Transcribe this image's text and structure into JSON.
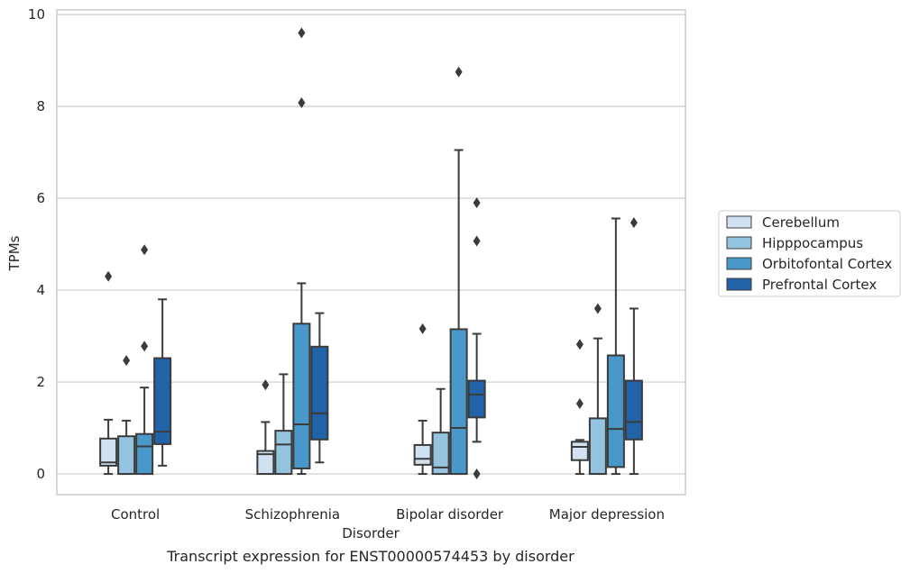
{
  "chart_data": {
    "type": "boxplot",
    "caption": "Transcript expression for ENST00000574453 by disorder",
    "xlabel": "Disorder",
    "ylabel": "TPMs",
    "ylim": [
      -0.45,
      10.1
    ],
    "yticks": [
      0,
      2,
      4,
      6,
      8,
      10
    ],
    "grid": true,
    "legend_position": "right",
    "categories": [
      "Control",
      "Schizophrenia",
      "Bipolar disorder",
      "Major depression"
    ],
    "series": [
      {
        "name": "Cerebellum",
        "color": "#d0e1f2",
        "boxes": [
          {
            "whisker_low": 0,
            "q1": 0.18,
            "median": 0.25,
            "q3": 0.77,
            "whisker_high": 1.18,
            "outliers": [
              4.3
            ]
          },
          {
            "whisker_low": 0,
            "q1": 0,
            "median": 0.43,
            "q3": 0.5,
            "whisker_high": 1.13,
            "outliers": [
              1.94
            ]
          },
          {
            "whisker_low": 0,
            "q1": 0.2,
            "median": 0.33,
            "q3": 0.63,
            "whisker_high": 1.16,
            "outliers": [
              3.16
            ]
          },
          {
            "whisker_low": 0,
            "q1": 0.3,
            "median": 0.59,
            "q3": 0.7,
            "whisker_high": 0.74,
            "outliers": [
              1.53,
              2.82
            ]
          }
        ]
      },
      {
        "name": "Hipppocampus",
        "color": "#94c4df",
        "boxes": [
          {
            "whisker_low": 0,
            "q1": 0,
            "median": 0,
            "q3": 0.82,
            "whisker_high": 1.16,
            "outliers": [
              2.47
            ]
          },
          {
            "whisker_low": 0,
            "q1": 0,
            "median": 0.64,
            "q3": 0.94,
            "whisker_high": 2.17,
            "outliers": []
          },
          {
            "whisker_low": 0,
            "q1": 0,
            "median": 0.14,
            "q3": 0.9,
            "whisker_high": 1.85,
            "outliers": []
          },
          {
            "whisker_low": 0,
            "q1": 0,
            "median": 0,
            "q3": 1.21,
            "whisker_high": 2.95,
            "outliers": [
              3.6
            ]
          }
        ]
      },
      {
        "name": "Orbitofontal Cortex",
        "color": "#4a98c9",
        "boxes": [
          {
            "whisker_low": 0,
            "q1": 0,
            "median": 0.6,
            "q3": 0.87,
            "whisker_high": 1.88,
            "outliers": [
              2.78,
              4.88
            ]
          },
          {
            "whisker_low": 0,
            "q1": 0.12,
            "median": 1.08,
            "q3": 3.27,
            "whisker_high": 4.15,
            "outliers": [
              8.08,
              9.6
            ]
          },
          {
            "whisker_low": 0,
            "q1": 0,
            "median": 1.0,
            "q3": 3.15,
            "whisker_high": 7.05,
            "outliers": [
              8.75
            ]
          },
          {
            "whisker_low": 0,
            "q1": 0.15,
            "median": 0.98,
            "q3": 2.58,
            "whisker_high": 5.56,
            "outliers": []
          }
        ]
      },
      {
        "name": "Prefrontal Cortex",
        "color": "#2163a9",
        "boxes": [
          {
            "whisker_low": 0.18,
            "q1": 0.65,
            "median": 0.92,
            "q3": 2.52,
            "whisker_high": 3.8,
            "outliers": []
          },
          {
            "whisker_low": 0.25,
            "q1": 0.75,
            "median": 1.32,
            "q3": 2.77,
            "whisker_high": 3.5,
            "outliers": []
          },
          {
            "whisker_low": 0.7,
            "q1": 1.23,
            "median": 1.73,
            "q3": 2.03,
            "whisker_high": 3.05,
            "outliers": [
              0,
              5.07,
              5.9
            ]
          },
          {
            "whisker_low": 0,
            "q1": 0.75,
            "median": 1.13,
            "q3": 2.03,
            "whisker_high": 3.6,
            "outliers": [
              5.47
            ]
          }
        ]
      }
    ]
  }
}
